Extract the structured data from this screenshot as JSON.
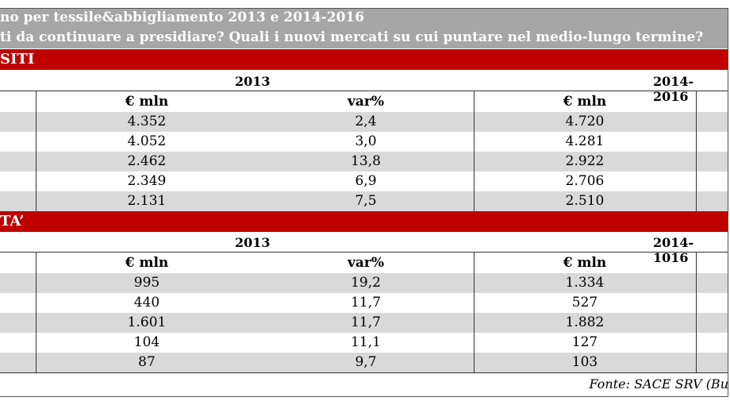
{
  "title": {
    "line1": "no per tessile&abbigliamento 2013 e 2014-2016",
    "line2": "ti da continuare a presidiare? Quali i nuovi mercati su cui puntare nel medio-lungo termine?"
  },
  "sections": [
    {
      "header": "SITI",
      "year_left": "2013",
      "year_right": "2014-2016",
      "columns": [
        "€ mln",
        "var%",
        "€ mln"
      ],
      "rows": [
        [
          "4.352",
          "2,4",
          "4.720"
        ],
        [
          "4.052",
          "3,0",
          "4.281"
        ],
        [
          "2.462",
          "13,8",
          "2.922"
        ],
        [
          "2.349",
          "6,9",
          "2.706"
        ],
        [
          "2.131",
          "7,5",
          "2.510"
        ]
      ]
    },
    {
      "header": "TA’",
      "year_left": "2013",
      "year_right": "2014-1016",
      "columns": [
        "€ mln",
        "var%",
        "€ mln"
      ],
      "rows": [
        [
          "995",
          "19,2",
          "1.334"
        ],
        [
          "440",
          "11,7",
          "527"
        ],
        [
          "1.601",
          "11,7",
          "1.882"
        ],
        [
          "104",
          "11,1",
          "127"
        ],
        [
          "87",
          "9,7",
          "103"
        ]
      ]
    }
  ],
  "source": "Fonte: SACE SRV (Bu"
}
